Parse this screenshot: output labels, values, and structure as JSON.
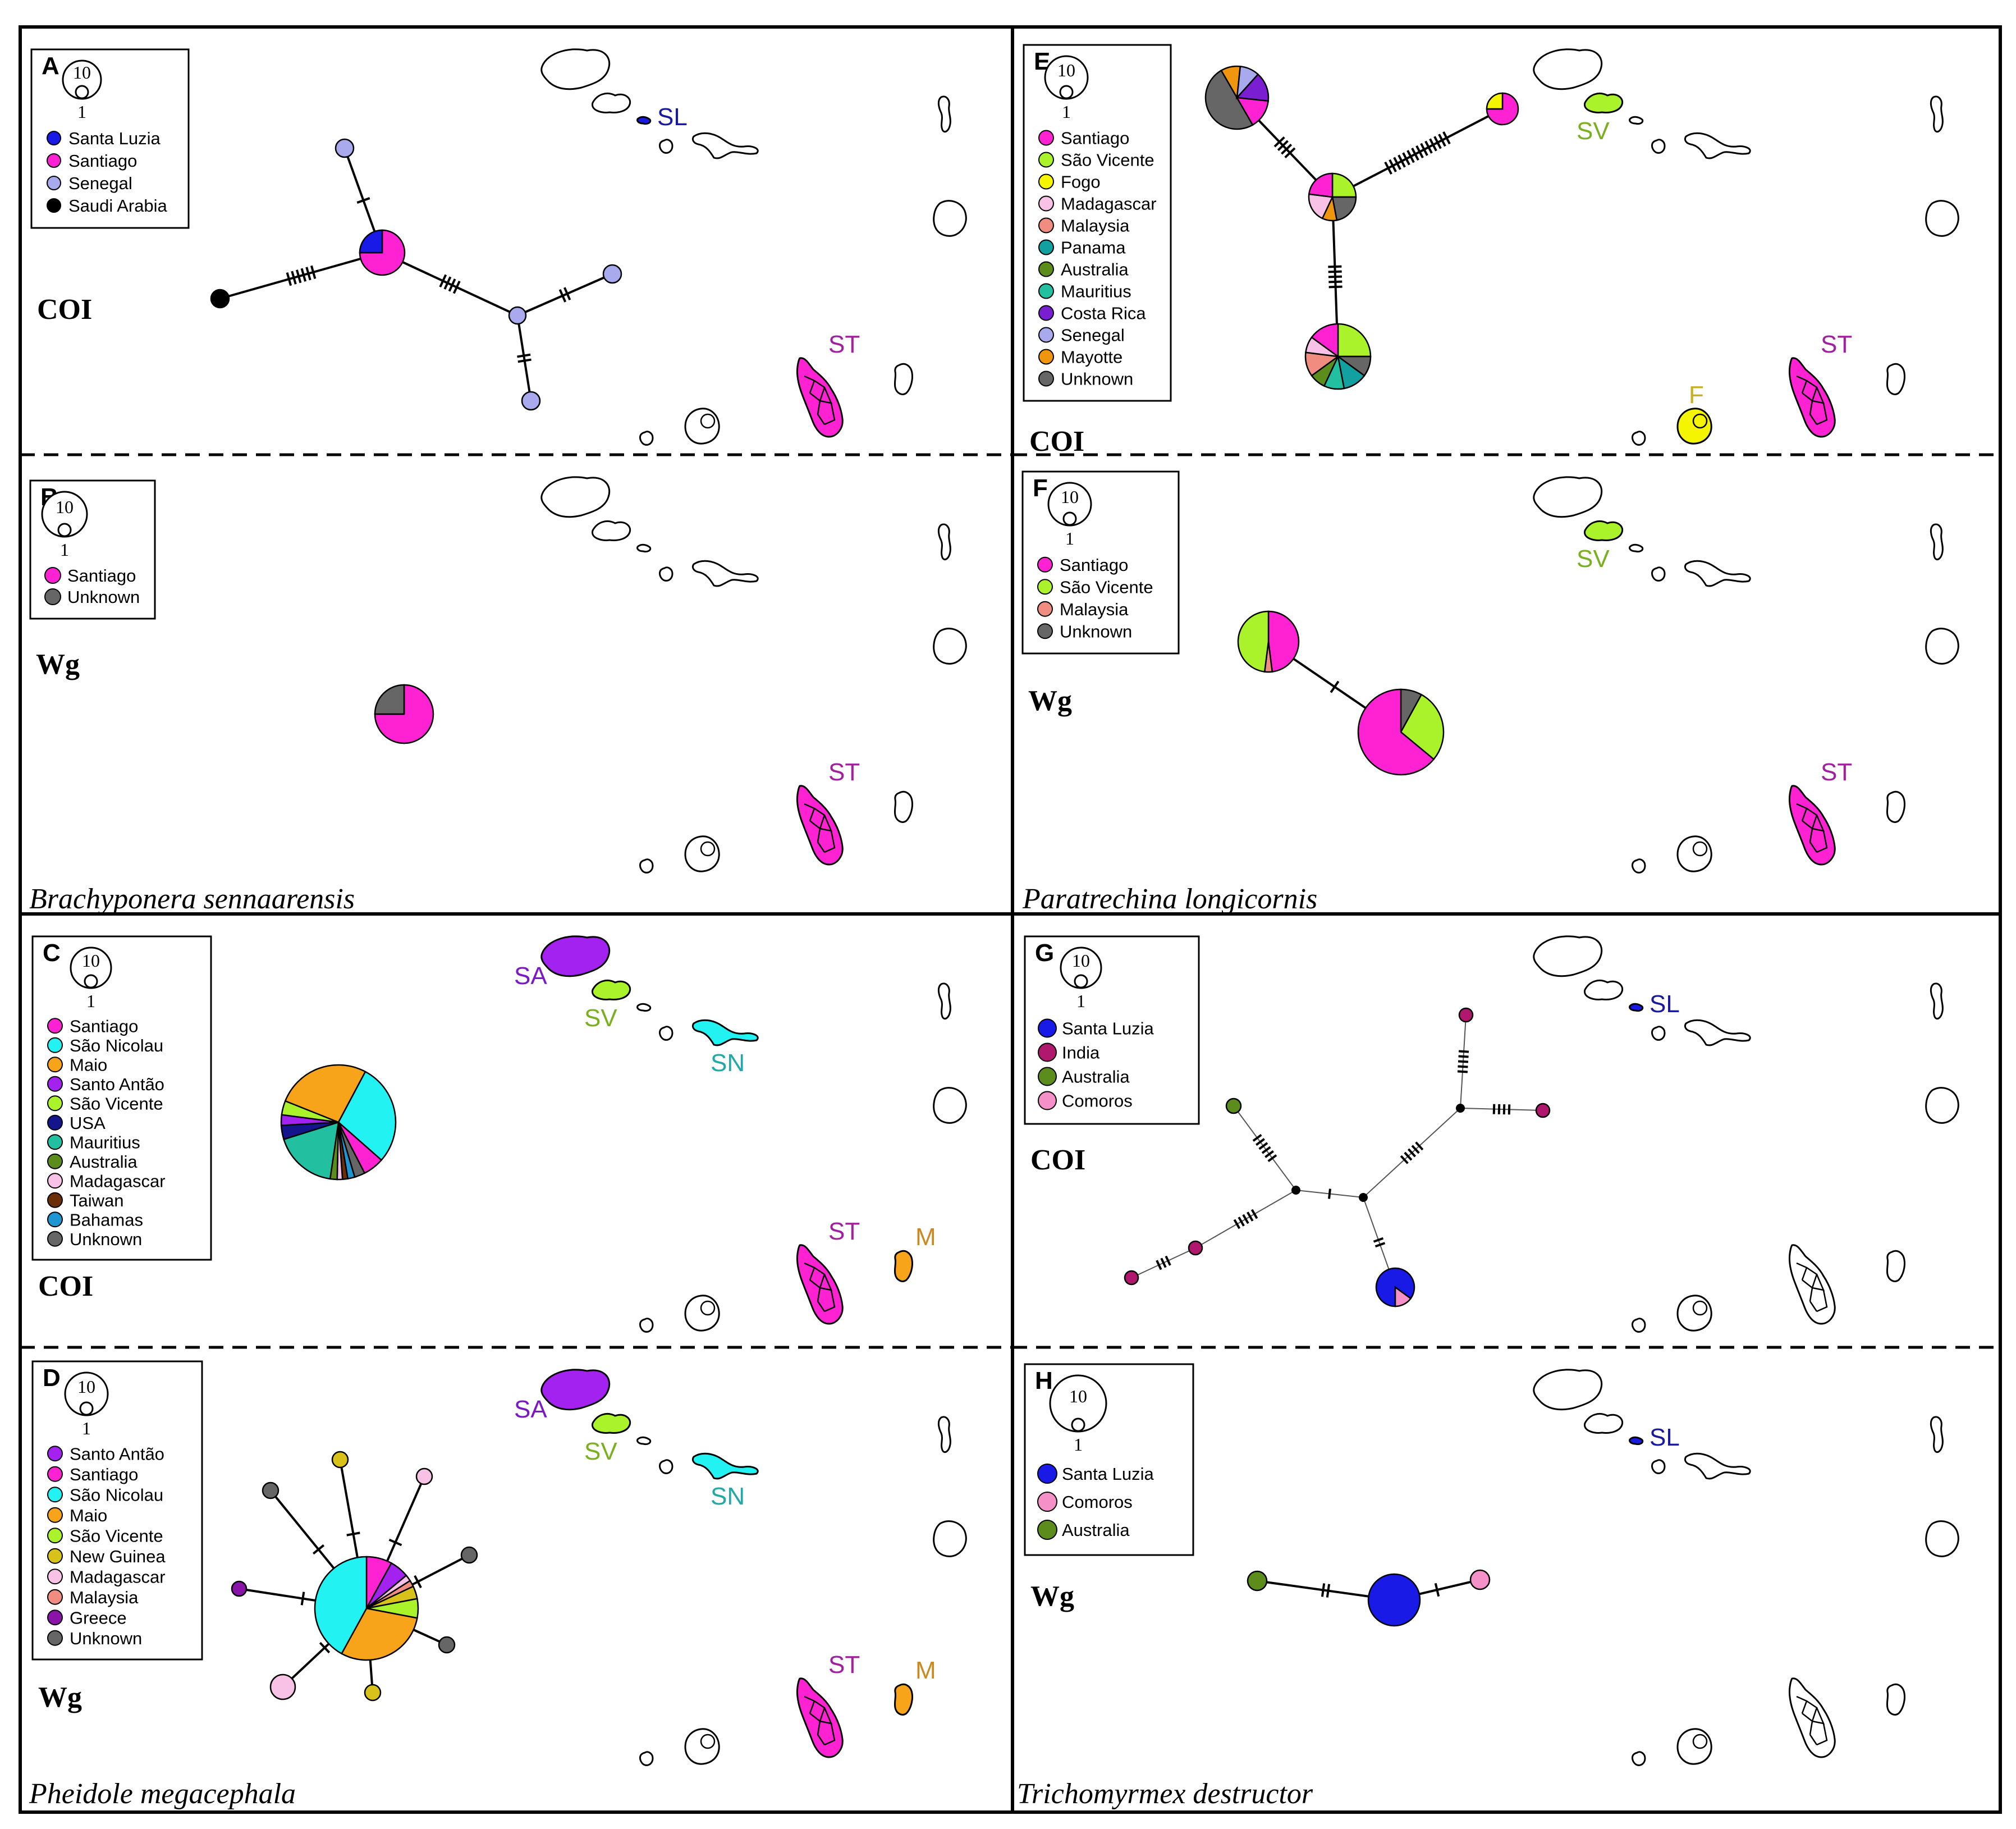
{
  "colors": {
    "Santa Luzia": "#1a1ae6",
    "Santiago": "#ff22d2",
    "Senegal": "#a9a9ee",
    "Saudi Arabia": "#000000",
    "Unknown": "#666666",
    "São Vicente": "#aaf22a",
    "Fogo": "#f5f500",
    "Madagascar": "#f8c2e6",
    "Malaysia": "#f08c80",
    "Panama": "#12a0a0",
    "Australia": "#5c8c1c",
    "Mauritius": "#22c0a0",
    "Costa Rica": "#7a1ed2",
    "Mayotte": "#f0960e",
    "São Nicolau": "#22f2f2",
    "Maio": "#f7a41a",
    "Santo Antão": "#a422f0",
    "USA": "#14148c",
    "Taiwan": "#6a2e08",
    "Bahamas": "#1e96d2",
    "New Guinea": "#d8c21a",
    "Greece": "#8a14a8",
    "India": "#b0186e",
    "Comoros": "#f590c8"
  },
  "species": {
    "brachyponera": "Brachyponera sennaarensis",
    "paratrechina": "Paratrechina longicornis",
    "pheidole": "Pheidole megacephala",
    "trichomyrmex": "Trichomyrmex destructor"
  },
  "panels": {
    "A": {
      "letter": "A",
      "marker": "COI",
      "scale_large": "10",
      "scale_small": "1",
      "legend": [
        "Santa Luzia",
        "Santiago",
        "Senegal",
        "Saudi Arabia"
      ],
      "islands": [
        "SL",
        "ST"
      ]
    },
    "B": {
      "letter": "B",
      "marker": "Wg",
      "scale_large": "10",
      "scale_small": "1",
      "legend": [
        "Santiago",
        "Unknown"
      ],
      "islands": [
        "ST"
      ]
    },
    "C": {
      "letter": "C",
      "marker": "COI",
      "scale_large": "10",
      "scale_small": "1",
      "legend": [
        "Santiago",
        "São Nicolau",
        "Maio",
        "Santo Antão",
        "São Vicente",
        "USA",
        "Mauritius",
        "Australia",
        "Madagascar",
        "Taiwan",
        "Bahamas",
        "Unknown"
      ],
      "islands": [
        "SA",
        "SV",
        "SN",
        "ST",
        "M"
      ]
    },
    "D": {
      "letter": "D",
      "marker": "Wg",
      "scale_large": "10",
      "scale_small": "1",
      "legend": [
        "Santo Antão",
        "Santiago",
        "São Nicolau",
        "Maio",
        "São Vicente",
        "New Guinea",
        "Madagascar",
        "Malaysia",
        "Greece",
        "Unknown"
      ],
      "islands": [
        "SA",
        "SV",
        "SN",
        "ST",
        "M"
      ]
    },
    "E": {
      "letter": "E",
      "marker": "COI",
      "scale_large": "10",
      "scale_small": "1",
      "legend": [
        "Santiago",
        "São Vicente",
        "Fogo",
        "Madagascar",
        "Malaysia",
        "Panama",
        "Australia",
        "Mauritius",
        "Costa Rica",
        "Senegal",
        "Mayotte",
        "Unknown"
      ],
      "islands": [
        "SV",
        "F",
        "ST"
      ]
    },
    "F": {
      "letter": "F",
      "marker": "Wg",
      "scale_large": "10",
      "scale_small": "1",
      "legend": [
        "Santiago",
        "São Vicente",
        "Malaysia",
        "Unknown"
      ],
      "islands": [
        "SV",
        "ST"
      ]
    },
    "G": {
      "letter": "G",
      "marker": "COI",
      "scale_large": "10",
      "scale_small": "1",
      "legend": [
        "Santa Luzia",
        "India",
        "Australia",
        "Comoros"
      ],
      "islands": [
        "SL"
      ]
    },
    "H": {
      "letter": "H",
      "marker": "Wg",
      "scale_large": "10",
      "scale_small": "1",
      "legend": [
        "Santa Luzia",
        "Comoros",
        "Australia"
      ],
      "islands": [
        "SL"
      ]
    }
  },
  "island_names": {
    "SL": "Santa Luzia",
    "ST": "Santiago",
    "SA": "Santo Antão",
    "SV": "São Vicente",
    "SN": "São Nicolau",
    "M": "Maio",
    "F": "Fogo"
  },
  "networks": {
    "A": {
      "nodes": [
        {
          "id": "a-center",
          "slices": [
            [
              "Santiago",
              0.75
            ],
            [
              "Santa Luzia",
              0.25
            ]
          ]
        },
        {
          "id": "a-saudi",
          "slices": [
            [
              "Saudi Arabia",
              1
            ]
          ]
        },
        {
          "id": "a-sen1",
          "slices": [
            [
              "Senegal",
              1
            ]
          ]
        },
        {
          "id": "a-sen2",
          "slices": [
            [
              "Senegal",
              1
            ]
          ]
        },
        {
          "id": "a-sen3",
          "slices": [
            [
              "Senegal",
              1
            ]
          ]
        },
        {
          "id": "a-sen4",
          "slices": [
            [
              "Senegal",
              1
            ]
          ]
        }
      ]
    },
    "B": {
      "nodes": [
        {
          "id": "b-center",
          "slices": [
            [
              "Santiago",
              0.75
            ],
            [
              "Unknown",
              0.25
            ]
          ]
        }
      ]
    },
    "C": {
      "nodes": [
        {
          "id": "c-center",
          "slices": [
            [
              "São Nicolau",
              0.29
            ],
            [
              "Santiago",
              0.06
            ],
            [
              "Unknown",
              0.03
            ],
            [
              "Bahamas",
              0.02
            ],
            [
              "Taiwan",
              0.015
            ],
            [
              "Madagascar",
              0.015
            ],
            [
              "Australia",
              0.02
            ],
            [
              "Mauritius",
              0.18
            ],
            [
              "USA",
              0.04
            ],
            [
              "Santo Antão",
              0.03
            ],
            [
              "São Vicente",
              0.04
            ],
            [
              "Maio",
              0.27
            ]
          ]
        }
      ]
    },
    "D": {
      "nodes": [
        {
          "id": "d-center",
          "slices": [
            [
              "Santiago",
              0.08
            ],
            [
              "Santo Antão",
              0.06
            ],
            [
              "Madagascar",
              0.02
            ],
            [
              "Malaysia",
              0.02
            ],
            [
              "New Guinea",
              0.04
            ],
            [
              "São Vicente",
              0.06
            ],
            [
              "Maio",
              0.3
            ],
            [
              "São Nicolau",
              0.42
            ]
          ]
        },
        {
          "id": "d-1",
          "slices": [
            [
              "New Guinea",
              1
            ]
          ]
        },
        {
          "id": "d-2",
          "slices": [
            [
              "Madagascar",
              1
            ]
          ]
        },
        {
          "id": "d-3",
          "slices": [
            [
              "Unknown",
              1
            ]
          ]
        },
        {
          "id": "d-4",
          "slices": [
            [
              "Unknown",
              1
            ]
          ]
        },
        {
          "id": "d-5",
          "slices": [
            [
              "New Guinea",
              1
            ]
          ]
        },
        {
          "id": "d-6",
          "slices": [
            [
              "Madagascar",
              1
            ]
          ]
        },
        {
          "id": "d-7",
          "slices": [
            [
              "Greece",
              1
            ]
          ]
        },
        {
          "id": "d-8",
          "slices": [
            [
              "Unknown",
              1
            ]
          ]
        }
      ]
    },
    "E": {
      "nodes": [
        {
          "id": "e-top",
          "slices": [
            [
              "Unknown",
              0.5
            ],
            [
              "Mayotte",
              0.1
            ],
            [
              "Senegal",
              0.1
            ],
            [
              "Costa Rica",
              0.15
            ],
            [
              "Santiago",
              0.15
            ]
          ]
        },
        {
          "id": "e-mid",
          "slices": [
            [
              "São Vicente",
              0.25
            ],
            [
              "Unknown",
              0.22
            ],
            [
              "Mayotte",
              0.1
            ],
            [
              "Madagascar",
              0.2
            ],
            [
              "Santiago",
              0.23
            ]
          ]
        },
        {
          "id": "e-right",
          "slices": [
            [
              "Santiago",
              0.75
            ],
            [
              "Fogo",
              0.25
            ]
          ]
        },
        {
          "id": "e-bottom",
          "slices": [
            [
              "São Vicente",
              0.25
            ],
            [
              "Unknown",
              0.1
            ],
            [
              "Panama",
              0.12
            ],
            [
              "Mauritius",
              0.1
            ],
            [
              "Australia",
              0.08
            ],
            [
              "Malaysia",
              0.12
            ],
            [
              "Madagascar",
              0.08
            ],
            [
              "Santiago",
              0.15
            ]
          ]
        }
      ]
    },
    "F": {
      "nodes": [
        {
          "id": "f-small",
          "slices": [
            [
              "Santiago",
              0.48
            ],
            [
              "Malaysia",
              0.04
            ],
            [
              "São Vicente",
              0.48
            ]
          ]
        },
        {
          "id": "f-large",
          "slices": [
            [
              "Unknown",
              0.08
            ],
            [
              "São Vicente",
              0.28
            ],
            [
              "Santiago",
              0.64
            ]
          ]
        }
      ]
    },
    "G": {
      "nodes": [
        {
          "id": "g-sl",
          "slices": [
            [
              "Santa Luzia",
              0.85
            ],
            [
              "Comoros",
              0.15
            ]
          ]
        },
        {
          "id": "g-in1",
          "slices": [
            [
              "India",
              1
            ]
          ]
        },
        {
          "id": "g-in2",
          "slices": [
            [
              "India",
              1
            ]
          ]
        },
        {
          "id": "g-in3",
          "slices": [
            [
              "India",
              1
            ]
          ]
        },
        {
          "id": "g-in4",
          "slices": [
            [
              "India",
              1
            ]
          ]
        },
        {
          "id": "g-au",
          "slices": [
            [
              "Australia",
              1
            ]
          ]
        }
      ]
    },
    "H": {
      "nodes": [
        {
          "id": "h-sl",
          "slices": [
            [
              "Santa Luzia",
              1
            ]
          ]
        },
        {
          "id": "h-com",
          "slices": [
            [
              "Comoros",
              1
            ]
          ]
        },
        {
          "id": "h-au",
          "slices": [
            [
              "Australia",
              1
            ]
          ]
        }
      ]
    }
  }
}
